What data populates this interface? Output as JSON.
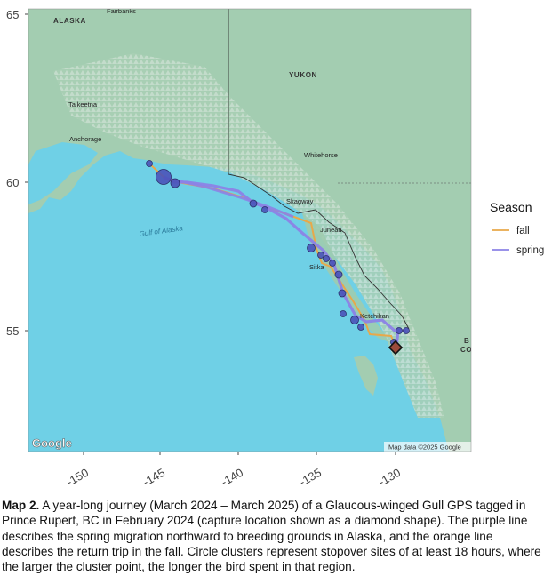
{
  "map": {
    "y_ticks": [
      "65",
      "60",
      "55"
    ],
    "x_ticks": [
      "-150",
      "-145",
      "-140",
      "-135",
      "-130"
    ],
    "places": [
      {
        "name": "Fairbanks",
        "key": "fairbanks"
      },
      {
        "name": "ALASKA",
        "key": "alaska"
      },
      {
        "name": "Talkeetna",
        "key": "talkeetna"
      },
      {
        "name": "Anchorage",
        "key": "anchorage"
      },
      {
        "name": "YUKON",
        "key": "yukon"
      },
      {
        "name": "Whitehorse",
        "key": "whitehorse"
      },
      {
        "name": "Skagway",
        "key": "skagway"
      },
      {
        "name": "Juneau",
        "key": "juneau"
      },
      {
        "name": "Sitka",
        "key": "sitka"
      },
      {
        "name": "Ketchikan",
        "key": "ketchikan"
      },
      {
        "name": "Gulf of Alaska",
        "key": "gulf"
      },
      {
        "name": "B",
        "key": "bc1"
      },
      {
        "name": "CO",
        "key": "bc2"
      }
    ],
    "google_logo": "Google",
    "attribution": "Map data ©2025 Google"
  },
  "legend": {
    "title": "Season",
    "items": [
      {
        "label": "fall",
        "color": "#e8a84a"
      },
      {
        "label": "spring",
        "color": "#8c82e6"
      }
    ]
  },
  "colors": {
    "ocean": "#6fd0e6",
    "land": "#9ec9ab",
    "fall": "#e8a84a",
    "spring": "#8c82e6",
    "stopover": "#4a52b8",
    "capture": "#9a4a3a"
  },
  "caption": {
    "label": "Map 2.",
    "text": "A year-long journey (March 2024 – March 2025) of a Glaucous-winged Gull GPS tagged in Prince Rupert, BC in February 2024 (capture location shown as a diamond shape). The purple line describes the spring migration northward to breeding grounds in Alaska, and the orange line describes the return trip in the fall. Circle clusters represent stopover sites of at least 18 hours, where the larger the cluster point, the longer the bird spent in that region."
  }
}
